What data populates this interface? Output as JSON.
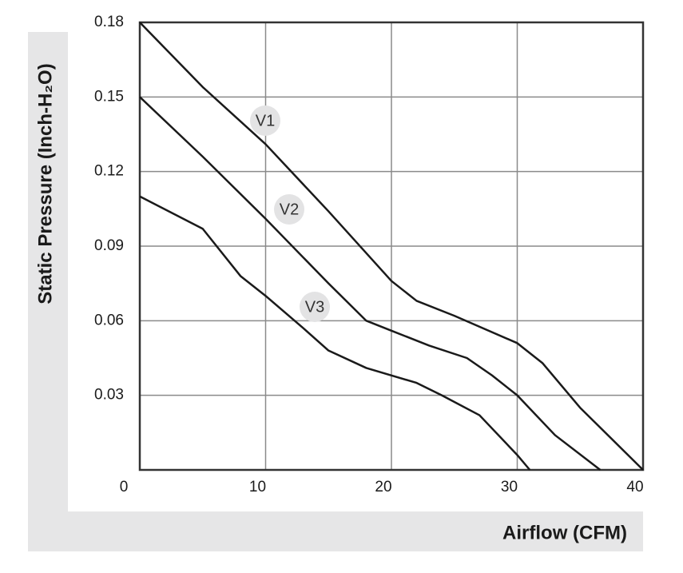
{
  "chart_data": {
    "type": "line",
    "x_label": "Airflow (CFM)",
    "y_label": "Static Pressure (Inch-H₂O)",
    "xlim": [
      0,
      40
    ],
    "xticks": [
      0,
      10,
      20,
      30,
      40
    ],
    "ylim": [
      0,
      0.18
    ],
    "yticks": [
      0.03,
      0.06,
      0.09,
      0.12,
      0.15,
      0.18
    ],
    "grid": true,
    "series": [
      {
        "name": "V1",
        "color": "#1a1a1a",
        "x": [
          0,
          5,
          10,
          15,
          20,
          22,
          25,
          30,
          32,
          35,
          40
        ],
        "values": [
          0.18,
          0.154,
          0.131,
          0.104,
          0.076,
          0.068,
          0.062,
          0.051,
          0.043,
          0.025,
          0
        ]
      },
      {
        "name": "V2",
        "color": "#1a1a1a",
        "x": [
          0,
          5,
          10,
          15,
          18,
          20,
          23,
          26,
          28,
          30,
          33,
          36.6
        ],
        "values": [
          0.15,
          0.126,
          0.101,
          0.075,
          0.06,
          0.056,
          0.05,
          0.045,
          0.038,
          0.03,
          0.014,
          0
        ]
      },
      {
        "name": "V3",
        "color": "#1a1a1a",
        "x": [
          0,
          5,
          8,
          10,
          13,
          15,
          18,
          22,
          24,
          27,
          30,
          31
        ],
        "values": [
          0.11,
          0.097,
          0.078,
          0.07,
          0.057,
          0.048,
          0.041,
          0.035,
          0.03,
          0.022,
          0.006,
          0
        ]
      }
    ]
  }
}
